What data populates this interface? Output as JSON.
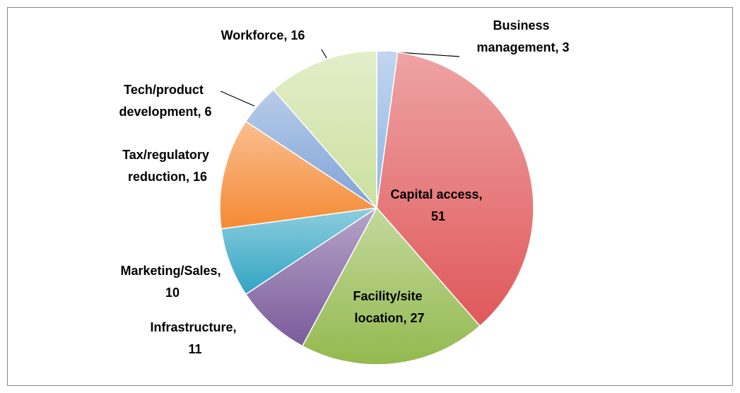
{
  "chart_data": {
    "type": "pie",
    "values": [
      3,
      51,
      27,
      11,
      10,
      16,
      6,
      16
    ],
    "value_labels": [
      "Business management, 3",
      "Capital access, 51",
      "Facility/site location, 27",
      "Infrastructure, 11",
      "Marketing/Sales, 10",
      "Tax/regulatory reduction, 16",
      "Tech/product development, 6",
      "Workforce, 16"
    ],
    "colors": [
      "#8eb4e3",
      "#e0585a",
      "#93b94e",
      "#7a5b9c",
      "#31a5c4",
      "#f58a34",
      "#7fa3d8",
      "#cbe09e"
    ]
  }
}
